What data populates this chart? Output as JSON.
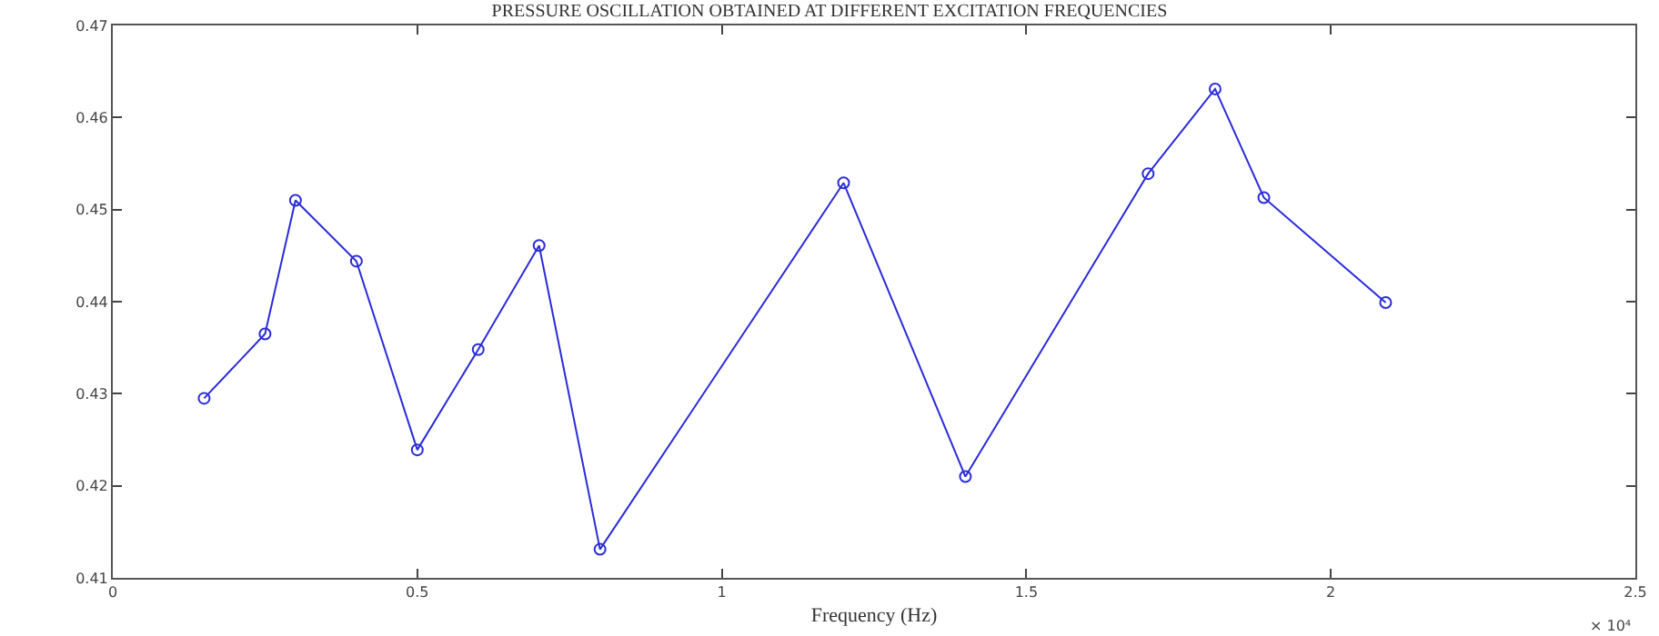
{
  "chart_data": {
    "type": "line",
    "title": "PRESSURE OSCILLATION OBTAINED AT DIFFERENT EXCITATION FREQUENCIES",
    "xlabel": "Frequency (Hz)",
    "annotations": [
      "× 10⁴"
    ],
    "x": [
      0.15,
      0.25,
      0.3,
      0.4,
      0.5,
      0.6,
      0.7,
      0.8,
      1.2,
      1.4,
      1.7,
      1.81,
      1.89,
      2.09
    ],
    "series": [
      {
        "color": "#2b2bd9",
        "values": [
          0.4295,
          0.4365,
          0.451,
          0.4444,
          0.4239,
          0.4348,
          0.4461,
          0.4131,
          0.4529,
          0.421,
          0.4539,
          0.4631,
          0.4513,
          0.4399
        ]
      }
    ],
    "xlim": [
      0,
      2.5
    ],
    "xticks": [
      0,
      0.5,
      1,
      1.5,
      2,
      2.5
    ],
    "ylim": [
      0.41,
      0.47
    ],
    "yticks": [
      0.41,
      0.42,
      0.43,
      0.44,
      0.45,
      0.46,
      0.47
    ],
    "grid": false,
    "marker": "circle",
    "line_style": "solid"
  }
}
